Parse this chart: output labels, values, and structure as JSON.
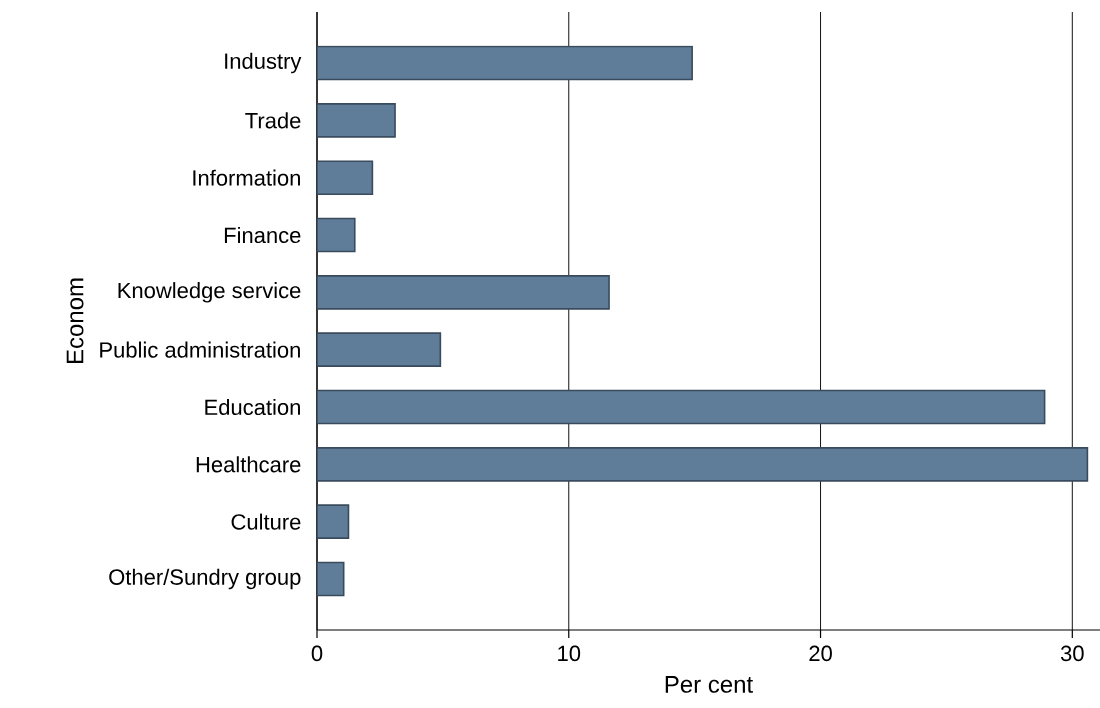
{
  "chart_data": {
    "type": "bar",
    "orientation": "horizontal",
    "xlabel": "Per cent",
    "ylabel": "Econom",
    "categories": [
      "Industry",
      "Trade",
      "Information",
      "Finance",
      "Knowledge service",
      "Public administration",
      "Education",
      "Healthcare",
      "Culture",
      "Other/Sundry group"
    ],
    "values": [
      14.9,
      3.1,
      2.2,
      1.5,
      11.6,
      4.9,
      28.9,
      30.6,
      1.25,
      1.06
    ],
    "color": "#5f7d99",
    "xlim": [
      0,
      31.1
    ],
    "xticks": [
      0,
      10,
      20,
      30
    ],
    "grid": "x"
  }
}
